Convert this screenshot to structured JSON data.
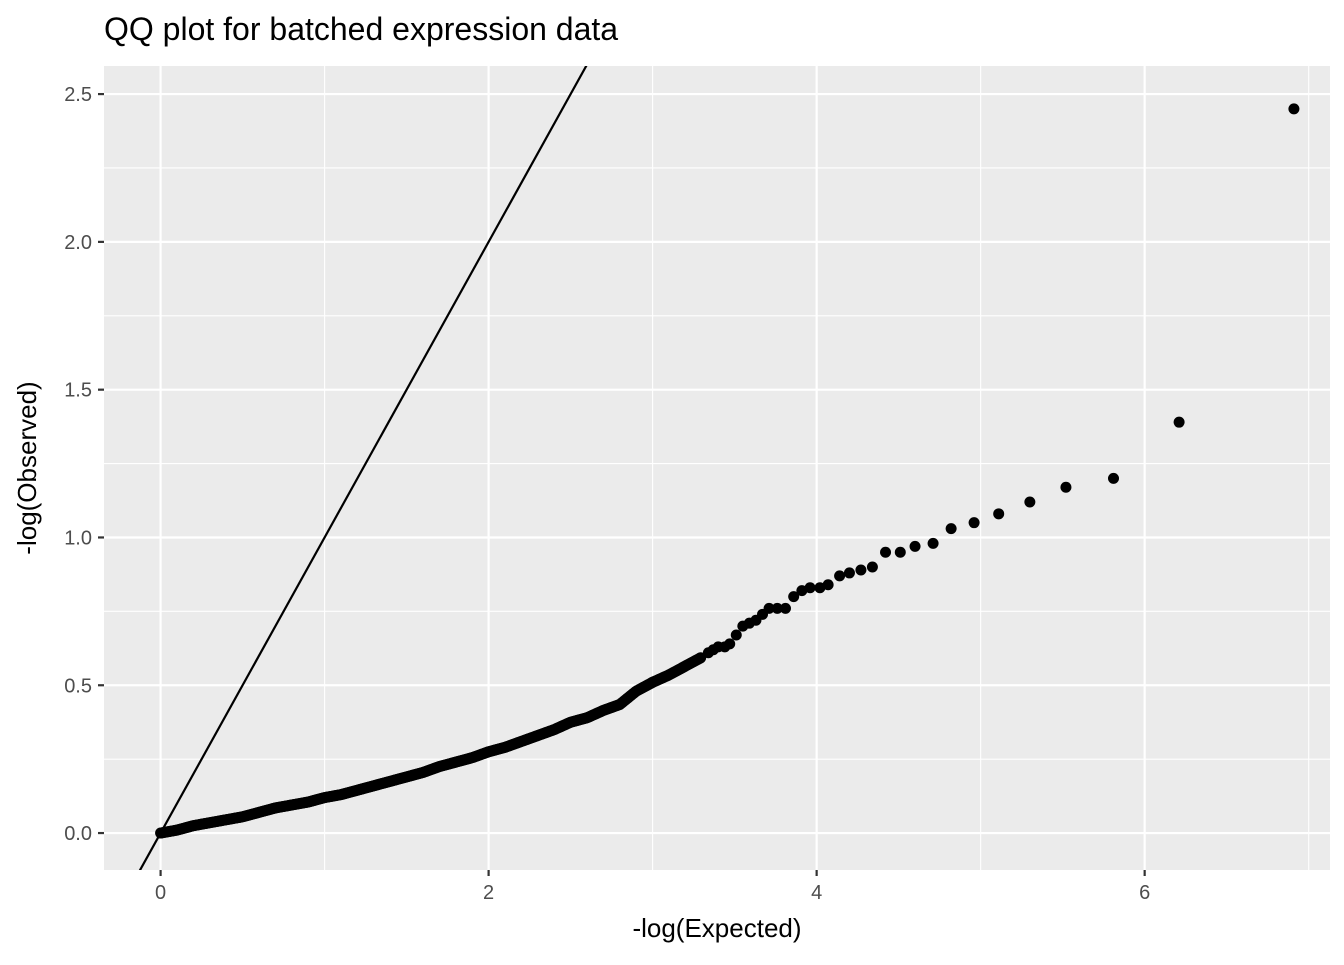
{
  "chart_data": {
    "type": "scatter",
    "title": "QQ plot for batched expression data",
    "xlabel": "-log(Expected)",
    "ylabel": "-log(Observed)",
    "xlim": [
      -0.345,
      7.13
    ],
    "ylim": [
      -0.125,
      2.595
    ],
    "x_ticks": [
      0,
      2,
      4,
      6
    ],
    "x_tick_labels": [
      "0",
      "2",
      "4",
      "6"
    ],
    "y_ticks": [
      0.0,
      0.5,
      1.0,
      1.5,
      2.0,
      2.5
    ],
    "y_tick_labels": [
      "0.0",
      "0.5",
      "1.0",
      "1.5",
      "2.0",
      "2.5"
    ],
    "grid": true,
    "legend": "none",
    "reference_line": {
      "intercept": 0,
      "slope": 1
    },
    "colors": {
      "panel": "#ebebeb",
      "grid": "#ffffff",
      "points": "#000000",
      "line": "#000000"
    },
    "points_tail": [
      {
        "x": 6.91,
        "y": 2.45
      },
      {
        "x": 6.21,
        "y": 1.39
      },
      {
        "x": 5.81,
        "y": 1.2
      },
      {
        "x": 5.52,
        "y": 1.17
      },
      {
        "x": 5.3,
        "y": 1.12
      },
      {
        "x": 5.11,
        "y": 1.08
      },
      {
        "x": 4.96,
        "y": 1.05
      },
      {
        "x": 4.82,
        "y": 1.03
      },
      {
        "x": 4.71,
        "y": 0.98
      },
      {
        "x": 4.6,
        "y": 0.97
      },
      {
        "x": 4.51,
        "y": 0.95
      },
      {
        "x": 4.42,
        "y": 0.95
      },
      {
        "x": 4.34,
        "y": 0.9
      },
      {
        "x": 4.27,
        "y": 0.89
      },
      {
        "x": 4.2,
        "y": 0.88
      },
      {
        "x": 4.14,
        "y": 0.87
      },
      {
        "x": 4.07,
        "y": 0.84
      },
      {
        "x": 4.02,
        "y": 0.83
      },
      {
        "x": 3.96,
        "y": 0.83
      },
      {
        "x": 3.91,
        "y": 0.82
      },
      {
        "x": 3.86,
        "y": 0.8
      },
      {
        "x": 3.81,
        "y": 0.76
      },
      {
        "x": 3.76,
        "y": 0.76
      },
      {
        "x": 3.71,
        "y": 0.76
      },
      {
        "x": 3.67,
        "y": 0.74
      },
      {
        "x": 3.63,
        "y": 0.72
      },
      {
        "x": 3.59,
        "y": 0.71
      },
      {
        "x": 3.55,
        "y": 0.7
      },
      {
        "x": 3.51,
        "y": 0.67
      },
      {
        "x": 3.47,
        "y": 0.64
      },
      {
        "x": 3.44,
        "y": 0.63
      },
      {
        "x": 3.4,
        "y": 0.63
      },
      {
        "x": 3.37,
        "y": 0.62
      },
      {
        "x": 3.34,
        "y": 0.61
      }
    ],
    "points_bulk_curve": [
      {
        "x": 0.0,
        "y": 0.0
      },
      {
        "x": 0.1,
        "y": 0.01
      },
      {
        "x": 0.2,
        "y": 0.025
      },
      {
        "x": 0.3,
        "y": 0.035
      },
      {
        "x": 0.4,
        "y": 0.045
      },
      {
        "x": 0.5,
        "y": 0.055
      },
      {
        "x": 0.6,
        "y": 0.07
      },
      {
        "x": 0.7,
        "y": 0.085
      },
      {
        "x": 0.8,
        "y": 0.095
      },
      {
        "x": 0.9,
        "y": 0.105
      },
      {
        "x": 1.0,
        "y": 0.12
      },
      {
        "x": 1.1,
        "y": 0.13
      },
      {
        "x": 1.2,
        "y": 0.145
      },
      {
        "x": 1.3,
        "y": 0.16
      },
      {
        "x": 1.4,
        "y": 0.175
      },
      {
        "x": 1.5,
        "y": 0.19
      },
      {
        "x": 1.6,
        "y": 0.205
      },
      {
        "x": 1.7,
        "y": 0.225
      },
      {
        "x": 1.8,
        "y": 0.24
      },
      {
        "x": 1.9,
        "y": 0.255
      },
      {
        "x": 2.0,
        "y": 0.275
      },
      {
        "x": 2.1,
        "y": 0.29
      },
      {
        "x": 2.2,
        "y": 0.31
      },
      {
        "x": 2.3,
        "y": 0.33
      },
      {
        "x": 2.4,
        "y": 0.35
      },
      {
        "x": 2.5,
        "y": 0.375
      },
      {
        "x": 2.6,
        "y": 0.39
      },
      {
        "x": 2.7,
        "y": 0.415
      },
      {
        "x": 2.8,
        "y": 0.435
      },
      {
        "x": 2.9,
        "y": 0.48
      },
      {
        "x": 3.0,
        "y": 0.51
      },
      {
        "x": 3.1,
        "y": 0.535
      },
      {
        "x": 3.2,
        "y": 0.565
      },
      {
        "x": 3.3,
        "y": 0.595
      }
    ]
  }
}
